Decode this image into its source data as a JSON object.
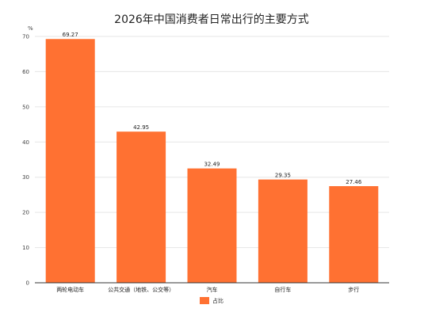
{
  "chart_data": {
    "type": "bar",
    "title": "2026年中国消费者日常出行的主要方式",
    "ylabel": "%",
    "xlabel": "",
    "categories": [
      "两轮电动车",
      "公共交通（地铁、公交等）",
      "汽车",
      "自行车",
      "步行"
    ],
    "series": [
      {
        "name": "占比",
        "values": [
          69.27,
          42.95,
          32.49,
          29.35,
          27.46
        ]
      }
    ],
    "data_labels": [
      "69.27",
      "42.95",
      "32.49",
      "29.35",
      "27.46"
    ],
    "ylim": [
      0,
      70
    ],
    "yticks": [
      0,
      10,
      20,
      30,
      40,
      50,
      60,
      70
    ],
    "grid": true,
    "legend_position": "bottom",
    "colors": {
      "bar": "#ff7132"
    }
  }
}
